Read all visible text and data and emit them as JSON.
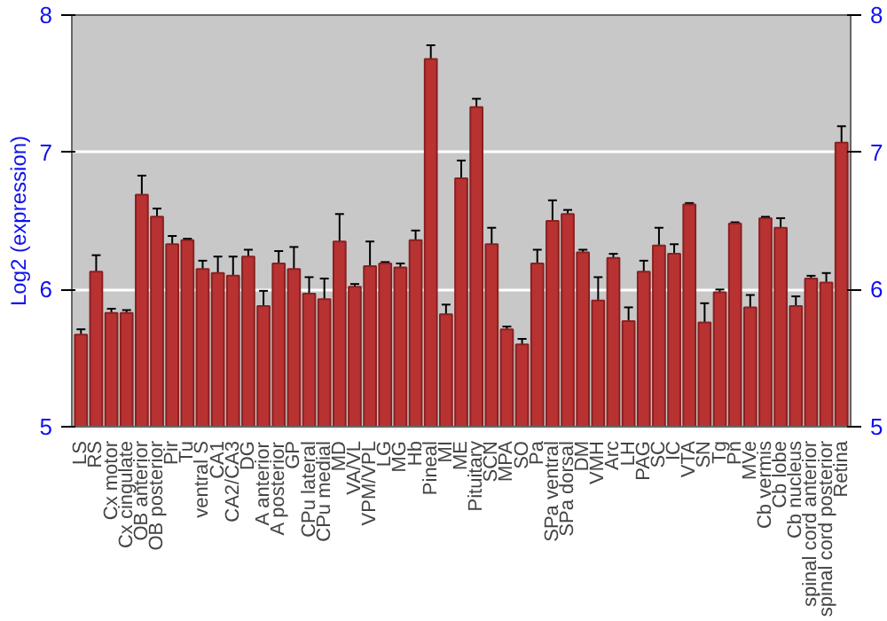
{
  "chart_data": {
    "type": "bar",
    "ylabel": "Log2 (expression)",
    "categories": [
      "LS",
      "RS",
      "Cx motor",
      "Cx cingulate",
      "OB anterior",
      "OB posterior",
      "Pir",
      "Tu",
      "ventral S",
      "CA1",
      "CA2/CA3",
      "DG",
      "A anterior",
      "A posterior",
      "GP",
      "CPu lateral",
      "CPu medial",
      "MD",
      "VA/VL",
      "VPM/VPL",
      "LG",
      "MG",
      "Hb",
      "Pineal",
      "MI",
      "ME",
      "Pituitary",
      "SCN",
      "MPA",
      "SO",
      "Pa",
      "SPa ventral",
      "SPa dorsal",
      "DM",
      "VMH",
      "Arc",
      "LH",
      "PAG",
      "SC",
      "IC",
      "VTA",
      "SN",
      "Tg",
      "Pn",
      "MVe",
      "Cb vermis",
      "Cb lobe",
      "Cb nucleus",
      "spinal cord anterior",
      "spinal cord posterior",
      "Retina"
    ],
    "values": [
      5.67,
      6.13,
      5.83,
      5.83,
      6.69,
      6.53,
      6.33,
      6.36,
      6.15,
      6.12,
      6.1,
      6.24,
      5.88,
      6.19,
      6.15,
      5.97,
      5.93,
      6.35,
      6.02,
      6.17,
      6.19,
      6.16,
      6.36,
      7.68,
      5.82,
      6.81,
      7.33,
      6.33,
      5.71,
      5.6,
      6.19,
      6.5,
      6.55,
      6.27,
      5.92,
      6.23,
      5.77,
      6.13,
      6.32,
      6.26,
      6.62,
      5.76,
      5.98,
      6.48,
      5.87,
      6.52,
      6.45,
      5.88,
      6.08,
      6.05,
      7.07
    ],
    "errors": [
      0.04,
      0.12,
      0.03,
      0.02,
      0.14,
      0.06,
      0.06,
      0.01,
      0.06,
      0.12,
      0.14,
      0.05,
      0.11,
      0.09,
      0.16,
      0.12,
      0.15,
      0.2,
      0.02,
      0.18,
      0.01,
      0.03,
      0.07,
      0.1,
      0.07,
      0.13,
      0.06,
      0.12,
      0.02,
      0.04,
      0.1,
      0.15,
      0.03,
      0.02,
      0.17,
      0.03,
      0.1,
      0.08,
      0.13,
      0.07,
      0.01,
      0.14,
      0.02,
      0.01,
      0.09,
      0.01,
      0.07,
      0.07,
      0.02,
      0.07,
      0.12
    ],
    "color": "#b83232",
    "ylim": [
      5,
      8
    ],
    "yticks": [
      5,
      6,
      7,
      8
    ],
    "y2lim": [
      5,
      8
    ],
    "y2ticks": [
      5,
      6,
      7,
      8
    ],
    "grid": "y"
  }
}
